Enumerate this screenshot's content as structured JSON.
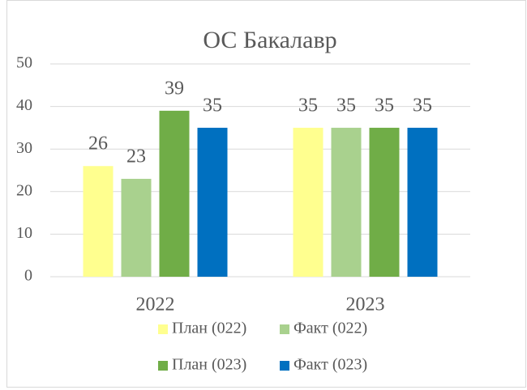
{
  "chart_data": {
    "type": "bar",
    "title": "ОС Бакалавр",
    "categories": [
      "2022",
      "2023"
    ],
    "series": [
      {
        "name": "План (022)",
        "color": "#ffff8f",
        "values": [
          26,
          35
        ]
      },
      {
        "name": "Факт (022)",
        "color": "#a9d18e",
        "values": [
          23,
          35
        ]
      },
      {
        "name": "План (023)",
        "color": "#70ad47",
        "values": [
          39,
          35
        ]
      },
      {
        "name": "Факт (023)",
        "color": "#0070c0",
        "values": [
          35,
          35
        ]
      }
    ],
    "ylim": [
      0,
      50
    ],
    "yticks": [
      0,
      10,
      20,
      30,
      40,
      50
    ],
    "grid": true,
    "legend": "bottom"
  }
}
